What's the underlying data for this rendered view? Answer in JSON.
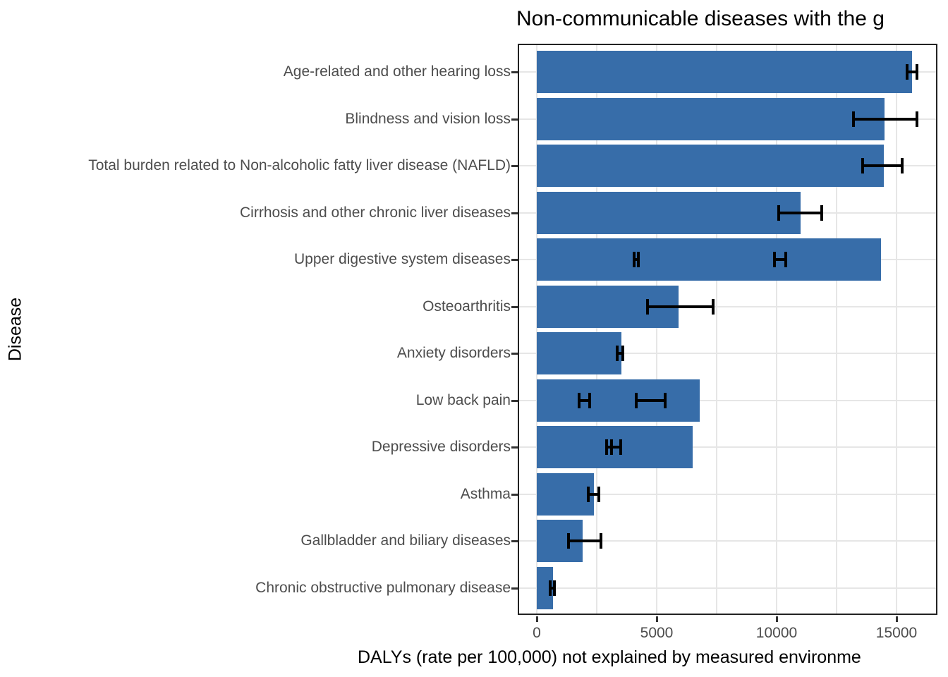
{
  "style": {
    "bar_color": "#376DA9",
    "error_color": "#000000",
    "grid_color": "#e6e6e6",
    "panel_border_color": "#222222",
    "tick_text_color": "#4d4d4d"
  },
  "chart_data": {
    "type": "bar",
    "orientation": "horizontal",
    "title": "Non-communicable diseases with the g",
    "title_note": "clipped at right edge of image",
    "xlabel": "DALYs (rate per 100,000) not explained by measured environme",
    "ylabel": "Disease",
    "xlim": [
      0,
      16700
    ],
    "x_ticks": [
      0,
      5000,
      10000,
      15000
    ],
    "x_tick_labels": [
      "0",
      "5000",
      "10000",
      "15000"
    ],
    "x_minor_gridlines": [
      2500,
      7500,
      12500
    ],
    "grid": true,
    "legend": false,
    "categories": [
      "Age-related and other hearing loss",
      "Blindness and vision loss",
      "Total burden related to Non-alcoholic fatty liver disease (NAFLD)",
      "Cirrhosis and other chronic liver diseases",
      "Upper digestive system diseases",
      "Osteoarthritis",
      "Anxiety disorders",
      "Low back pain",
      "Depressive disorders",
      "Asthma",
      "Gallbladder and biliary diseases",
      "Chronic obstructive pulmonary disease"
    ],
    "values": [
      15650,
      14510,
      14460,
      11000,
      14360,
      5910,
      3520,
      6790,
      6490,
      2370,
      1910,
      670
    ],
    "error_bars": [
      [
        [
          15380,
          15900
        ]
      ],
      [
        [
          13150,
          15910
        ]
      ],
      [
        [
          13530,
          15290
        ]
      ],
      [
        [
          10020,
          11930
        ]
      ],
      [
        [
          4000,
          4290
        ],
        [
          9850,
          10440
        ]
      ],
      [
        [
          4560,
          7420
        ]
      ],
      [
        [
          3290,
          3640
        ]
      ],
      [
        [
          1715,
          2275
        ],
        [
          4090,
          5410
        ]
      ],
      [
        [
          2850,
          3550
        ],
        [
          3060,
          3550
        ]
      ],
      [
        [
          2100,
          2640
        ]
      ],
      [
        [
          1275,
          2735
        ]
      ],
      [
        [
          490,
          805
        ]
      ]
    ]
  }
}
